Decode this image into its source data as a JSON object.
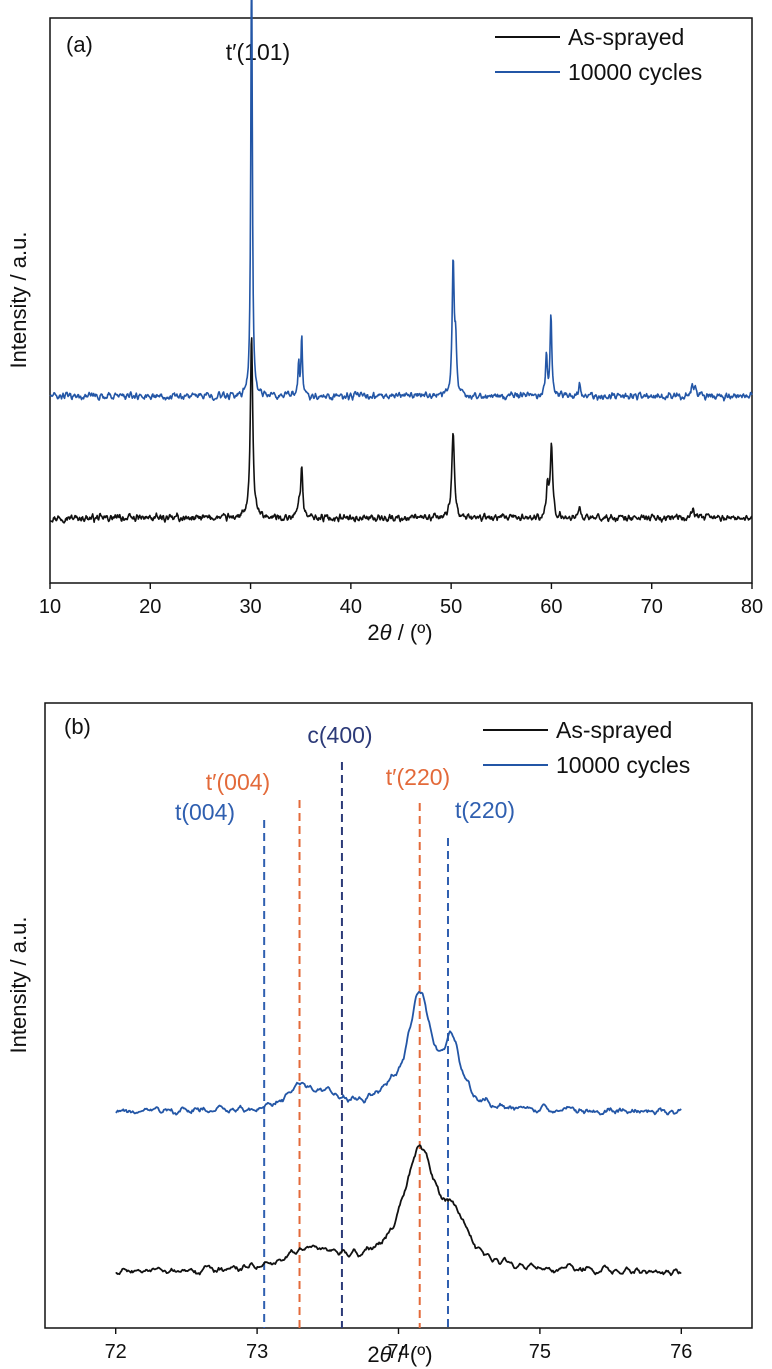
{
  "chart_data": [
    {
      "panel_label": "(a)",
      "type": "line",
      "xlabel_prefix": "2",
      "xlabel_symbol": "θ",
      "xlabel_suffix": " / (º)",
      "ylabel": "Intensity / a.u.",
      "xlim": [
        10,
        80
      ],
      "xticks": [
        "10",
        "20",
        "30",
        "40",
        "50",
        "60",
        "70",
        "80"
      ],
      "legend_position": "top-right",
      "annotation": "t′(101)",
      "series": [
        {
          "name": "As-sprayed",
          "color": "#111111",
          "baseline": 0.0,
          "peaks": [
            [
              30.1,
              1.0,
              0.14
            ],
            [
              34.8,
              0.08,
              0.12
            ],
            [
              35.1,
              0.28,
              0.12
            ],
            [
              50.2,
              0.48,
              0.16
            ],
            [
              59.6,
              0.18,
              0.13
            ],
            [
              60.0,
              0.38,
              0.14
            ],
            [
              62.8,
              0.06,
              0.13
            ],
            [
              74.1,
              0.06,
              0.13
            ]
          ]
        },
        {
          "name": "10000 cycles",
          "color": "#2356a6",
          "baseline": 0.67,
          "peaks": [
            [
              30.1,
              2.45,
              0.09
            ],
            [
              34.8,
              0.18,
              0.08
            ],
            [
              35.1,
              0.34,
              0.08
            ],
            [
              50.2,
              0.74,
              0.12
            ],
            [
              50.45,
              0.28,
              0.1
            ],
            [
              59.5,
              0.22,
              0.1
            ],
            [
              59.95,
              0.46,
              0.1
            ],
            [
              62.8,
              0.08,
              0.1
            ],
            [
              74.0,
              0.05,
              0.12
            ],
            [
              74.3,
              0.04,
              0.12
            ]
          ]
        }
      ]
    },
    {
      "panel_label": "(b)",
      "type": "line",
      "xlabel_prefix": "2",
      "xlabel_symbol": "θ",
      "xlabel_suffix": " / (º)",
      "ylabel": "Intensity / a.u.",
      "xlim": [
        71.5,
        76.5
      ],
      "xticks": [
        "72",
        "73",
        "74",
        "75",
        "76"
      ],
      "legend_position": "top-right",
      "series": [
        {
          "name": "As-sprayed",
          "color": "#111111",
          "x_range": [
            72,
            76
          ],
          "baseline": 0.0,
          "peaks": [
            [
              73.35,
              0.11,
              0.15
            ],
            [
              73.6,
              0.04,
              0.1
            ],
            [
              74.15,
              0.62,
              0.14
            ],
            [
              74.4,
              0.2,
              0.1
            ]
          ]
        },
        {
          "name": "10000 cycles",
          "color": "#2356a6",
          "x_range": [
            72,
            76
          ],
          "baseline": 0.82,
          "peaks": [
            [
              73.3,
              0.13,
              0.1
            ],
            [
              73.5,
              0.06,
              0.12
            ],
            [
              74.15,
              0.58,
              0.1
            ],
            [
              74.38,
              0.3,
              0.07
            ],
            [
              73.9,
              0.05,
              0.1
            ]
          ]
        }
      ],
      "reference_lines": [
        {
          "label": "t(004)",
          "x": 73.05,
          "color": "#2f5fb0"
        },
        {
          "label": "t′(004)",
          "x": 73.3,
          "color": "#e36a3a"
        },
        {
          "label": "c(400)",
          "x": 73.6,
          "color": "#2c3a78"
        },
        {
          "label": "t′(220)",
          "x": 74.15,
          "color": "#e36a3a"
        },
        {
          "label": "t(220)",
          "x": 74.35,
          "color": "#2f5fb0"
        }
      ]
    }
  ]
}
